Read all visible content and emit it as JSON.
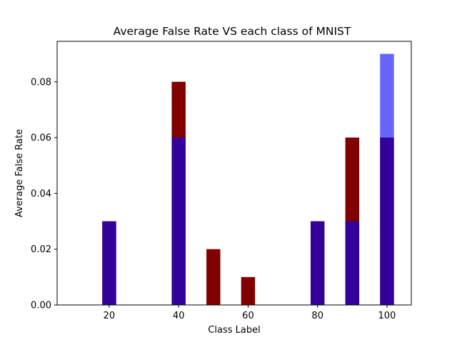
{
  "chart_data": {
    "type": "bar",
    "title": "Average False Rate VS each class of MNIST",
    "xlabel": "Class Label",
    "ylabel": "Average False Rate",
    "xlim": [
      5,
      107
    ],
    "ylim": [
      0,
      0.0945
    ],
    "x_ticks": [
      20,
      40,
      60,
      80,
      100
    ],
    "x_tick_labels": [
      "20",
      "40",
      "60",
      "80",
      "100"
    ],
    "y_ticks": [
      0,
      0.02,
      0.04,
      0.06,
      0.08
    ],
    "y_tick_labels": [
      "0.00",
      "0.02",
      "0.04",
      "0.06",
      "0.08"
    ],
    "bar_width": 4,
    "grid": false,
    "categories": [
      20,
      40,
      50,
      60,
      80,
      90,
      100
    ],
    "series": [
      {
        "color": "#800000",
        "opacity": 1.0,
        "values": [
          0.03,
          0.08,
          0.02,
          0.01,
          0.03,
          0.06,
          0.06
        ]
      },
      {
        "color": "#0000ff",
        "opacity": 0.6,
        "values": [
          0.03,
          0.06,
          0.0,
          0.0,
          0.03,
          0.03,
          0.09
        ]
      }
    ]
  }
}
